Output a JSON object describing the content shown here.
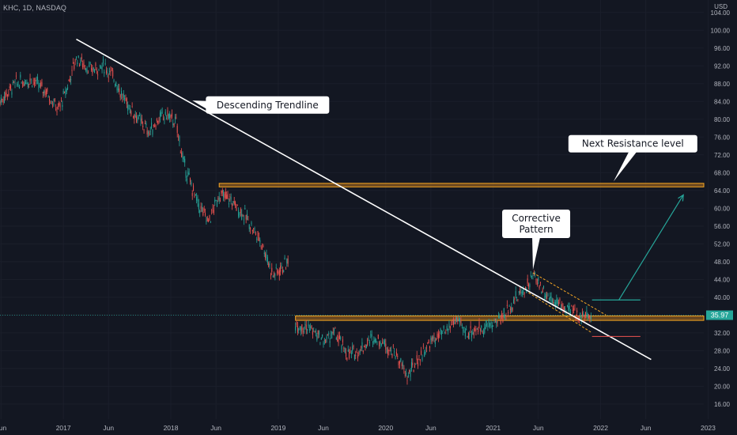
{
  "header": {
    "symbol_line": "KHC, 1D, NASDAQ",
    "currency": "USD"
  },
  "colors": {
    "background": "#131722",
    "up_candle": "#26a69a",
    "down_candle": "#ef5350",
    "trendline": "#ffffff",
    "zone_fill": "#8a5a1f",
    "zone_border": "#f5a623",
    "channel": "#f5a623",
    "arrow": "#26a69a",
    "price_tag": "#26a69a",
    "axis_text": "#b2b5be"
  },
  "chart_data": {
    "type": "candlestick",
    "title": "",
    "y_axis": {
      "side": "right",
      "ticks": [
        "104.00",
        "100.00",
        "96.00",
        "92.00",
        "88.00",
        "84.00",
        "80.00",
        "76.00",
        "72.00",
        "68.00",
        "64.00",
        "60.00",
        "56.00",
        "52.00",
        "48.00",
        "44.00",
        "40.00",
        "36.00",
        "32.00",
        "28.00",
        "24.00",
        "20.00",
        "16.00"
      ],
      "ylim": [
        12.6,
        106.8
      ]
    },
    "x_axis": {
      "ticks": [
        {
          "label": "Jun",
          "t": 2016.42
        },
        {
          "label": "2017",
          "t": 2017.0
        },
        {
          "label": "Jun",
          "t": 2017.42
        },
        {
          "label": "2018",
          "t": 2018.0
        },
        {
          "label": "Jun",
          "t": 2018.42
        },
        {
          "label": "2019",
          "t": 2019.0
        },
        {
          "label": "Jun",
          "t": 2019.42
        },
        {
          "label": "2020",
          "t": 2020.0
        },
        {
          "label": "Jun",
          "t": 2020.42
        },
        {
          "label": "2021",
          "t": 2021.0
        },
        {
          "label": "Jun",
          "t": 2021.42
        },
        {
          "label": "2022",
          "t": 2022.0
        },
        {
          "label": "Jun",
          "t": 2022.42
        },
        {
          "label": "2023",
          "t": 2023.0
        }
      ],
      "xlim": [
        2016.41,
        2022.96
      ]
    },
    "price_path": [
      [
        2016.41,
        84
      ],
      [
        2016.55,
        88
      ],
      [
        2016.7,
        89
      ],
      [
        2016.85,
        86
      ],
      [
        2016.95,
        82
      ],
      [
        2017.02,
        86
      ],
      [
        2017.12,
        94
      ],
      [
        2017.25,
        91
      ],
      [
        2017.38,
        92
      ],
      [
        2017.48,
        89
      ],
      [
        2017.55,
        85
      ],
      [
        2017.7,
        80
      ],
      [
        2017.8,
        77
      ],
      [
        2017.88,
        80
      ],
      [
        2017.97,
        81
      ],
      [
        2018.05,
        79
      ],
      [
        2018.12,
        70
      ],
      [
        2018.25,
        61
      ],
      [
        2018.35,
        57
      ],
      [
        2018.45,
        63
      ],
      [
        2018.55,
        62
      ],
      [
        2018.7,
        58
      ],
      [
        2018.85,
        52
      ],
      [
        2018.95,
        45
      ],
      [
        2019.0,
        46
      ],
      [
        2019.1,
        48
      ]
    ],
    "price_path_2": [
      [
        2019.16,
        34
      ],
      [
        2019.3,
        33
      ],
      [
        2019.42,
        30
      ],
      [
        2019.52,
        32
      ],
      [
        2019.65,
        27
      ],
      [
        2019.75,
        28
      ],
      [
        2019.88,
        31
      ],
      [
        2019.97,
        30
      ],
      [
        2020.1,
        27
      ],
      [
        2020.2,
        22
      ],
      [
        2020.3,
        26
      ],
      [
        2020.42,
        30
      ],
      [
        2020.55,
        32
      ],
      [
        2020.65,
        35
      ],
      [
        2020.75,
        32
      ],
      [
        2020.88,
        33
      ],
      [
        2021.0,
        34
      ],
      [
        2021.1,
        36
      ],
      [
        2021.22,
        40
      ],
      [
        2021.33,
        43
      ],
      [
        2021.38,
        45
      ],
      [
        2021.48,
        41
      ],
      [
        2021.58,
        39
      ],
      [
        2021.7,
        37
      ],
      [
        2021.82,
        36
      ],
      [
        2021.92,
        35.5
      ]
    ],
    "last_price": "35.97",
    "last_price_value": 35.97,
    "resistance_zone_upper": {
      "t0": 2018.45,
      "t1": 2022.96,
      "low": 64.8,
      "high": 65.6
    },
    "support_zone": {
      "t0": 2019.16,
      "t1": 2022.96,
      "low": 34.8,
      "high": 35.8
    },
    "trendline": {
      "t0": 2017.12,
      "v0": 98.0,
      "t1": 2022.47,
      "v1": 26.0
    },
    "channel": {
      "upper": [
        [
          2021.37,
          45.5
        ],
        [
          2022.05,
          36.0
        ]
      ],
      "lower": [
        [
          2021.33,
          41.0
        ],
        [
          2021.92,
          32.0
        ]
      ],
      "lower_extension": [
        [
          2021.92,
          31.2
        ],
        [
          2022.37,
          31.2
        ]
      ]
    },
    "green_target_line": {
      "t0": 2021.92,
      "t1": 2022.37,
      "v": 39.4
    },
    "arrow": {
      "from_t": 2022.17,
      "from_v": 39.4,
      "to_t": 2022.77,
      "to_v": 63.0
    },
    "annotations": [
      {
        "text": "Descending Trendline",
        "t": 2018.9,
        "v": 83.2,
        "pointer_t": 2018.2,
        "pointer_v": 84.2
      },
      {
        "text": "Next Resistance level",
        "t": 2022.3,
        "v": 74.5,
        "pointer_t": 2022.12,
        "pointer_v": 66.0
      },
      {
        "text": "Corrective",
        "text2": "Pattern",
        "t": 2021.4,
        "v": 56.5,
        "pointer_t": 2021.37,
        "pointer_v": 46.2
      }
    ]
  }
}
